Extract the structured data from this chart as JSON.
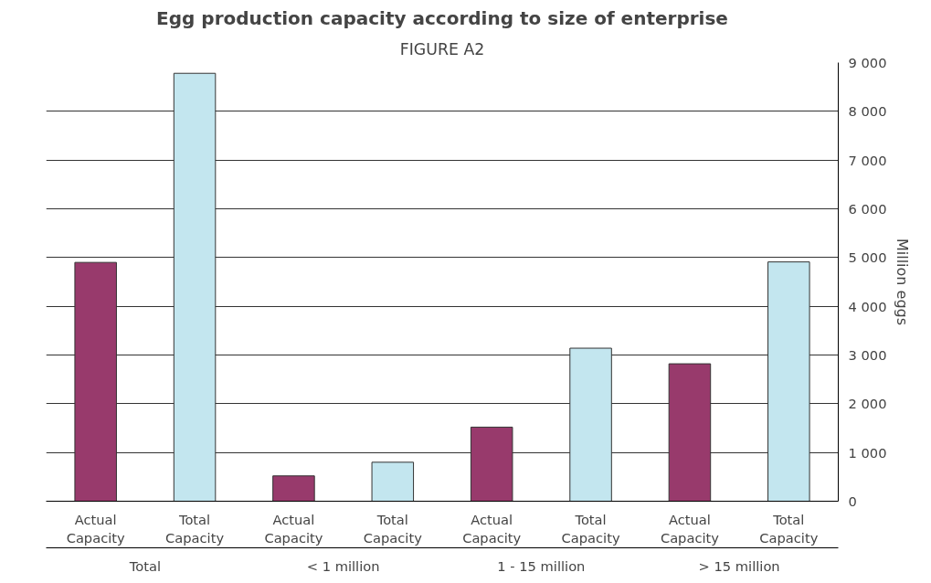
{
  "chart_data": {
    "type": "bar",
    "title": "FIGURE A2",
    "subtitle": "Egg production capacity according to size of enterprise",
    "ylabel": "Million eggs",
    "categories": [
      "Total",
      "< 1 million",
      "1 - 15 million",
      "> 15 million"
    ],
    "series": [
      {
        "name": "Actual Capacity",
        "color": "#983a6c",
        "values": [
          4900,
          520,
          1520,
          2820
        ]
      },
      {
        "name": "Total Capacity",
        "color": "#c3e6ef",
        "values": [
          8780,
          800,
          3140,
          4910
        ]
      }
    ],
    "ylim": [
      0,
      9000
    ],
    "yticks": [
      {
        "value": 0,
        "label": "0"
      },
      {
        "value": 1000,
        "label": "1 000"
      },
      {
        "value": 2000,
        "label": "2 000"
      },
      {
        "value": 3000,
        "label": "3 000"
      },
      {
        "value": 4000,
        "label": "4 000"
      },
      {
        "value": 5000,
        "label": "5 000"
      },
      {
        "value": 6000,
        "label": "6 000"
      },
      {
        "value": 7000,
        "label": "7 000"
      },
      {
        "value": 8000,
        "label": "8 000"
      },
      {
        "value": 9000,
        "label": "9 000"
      }
    ],
    "grid": "y",
    "legend": false
  }
}
